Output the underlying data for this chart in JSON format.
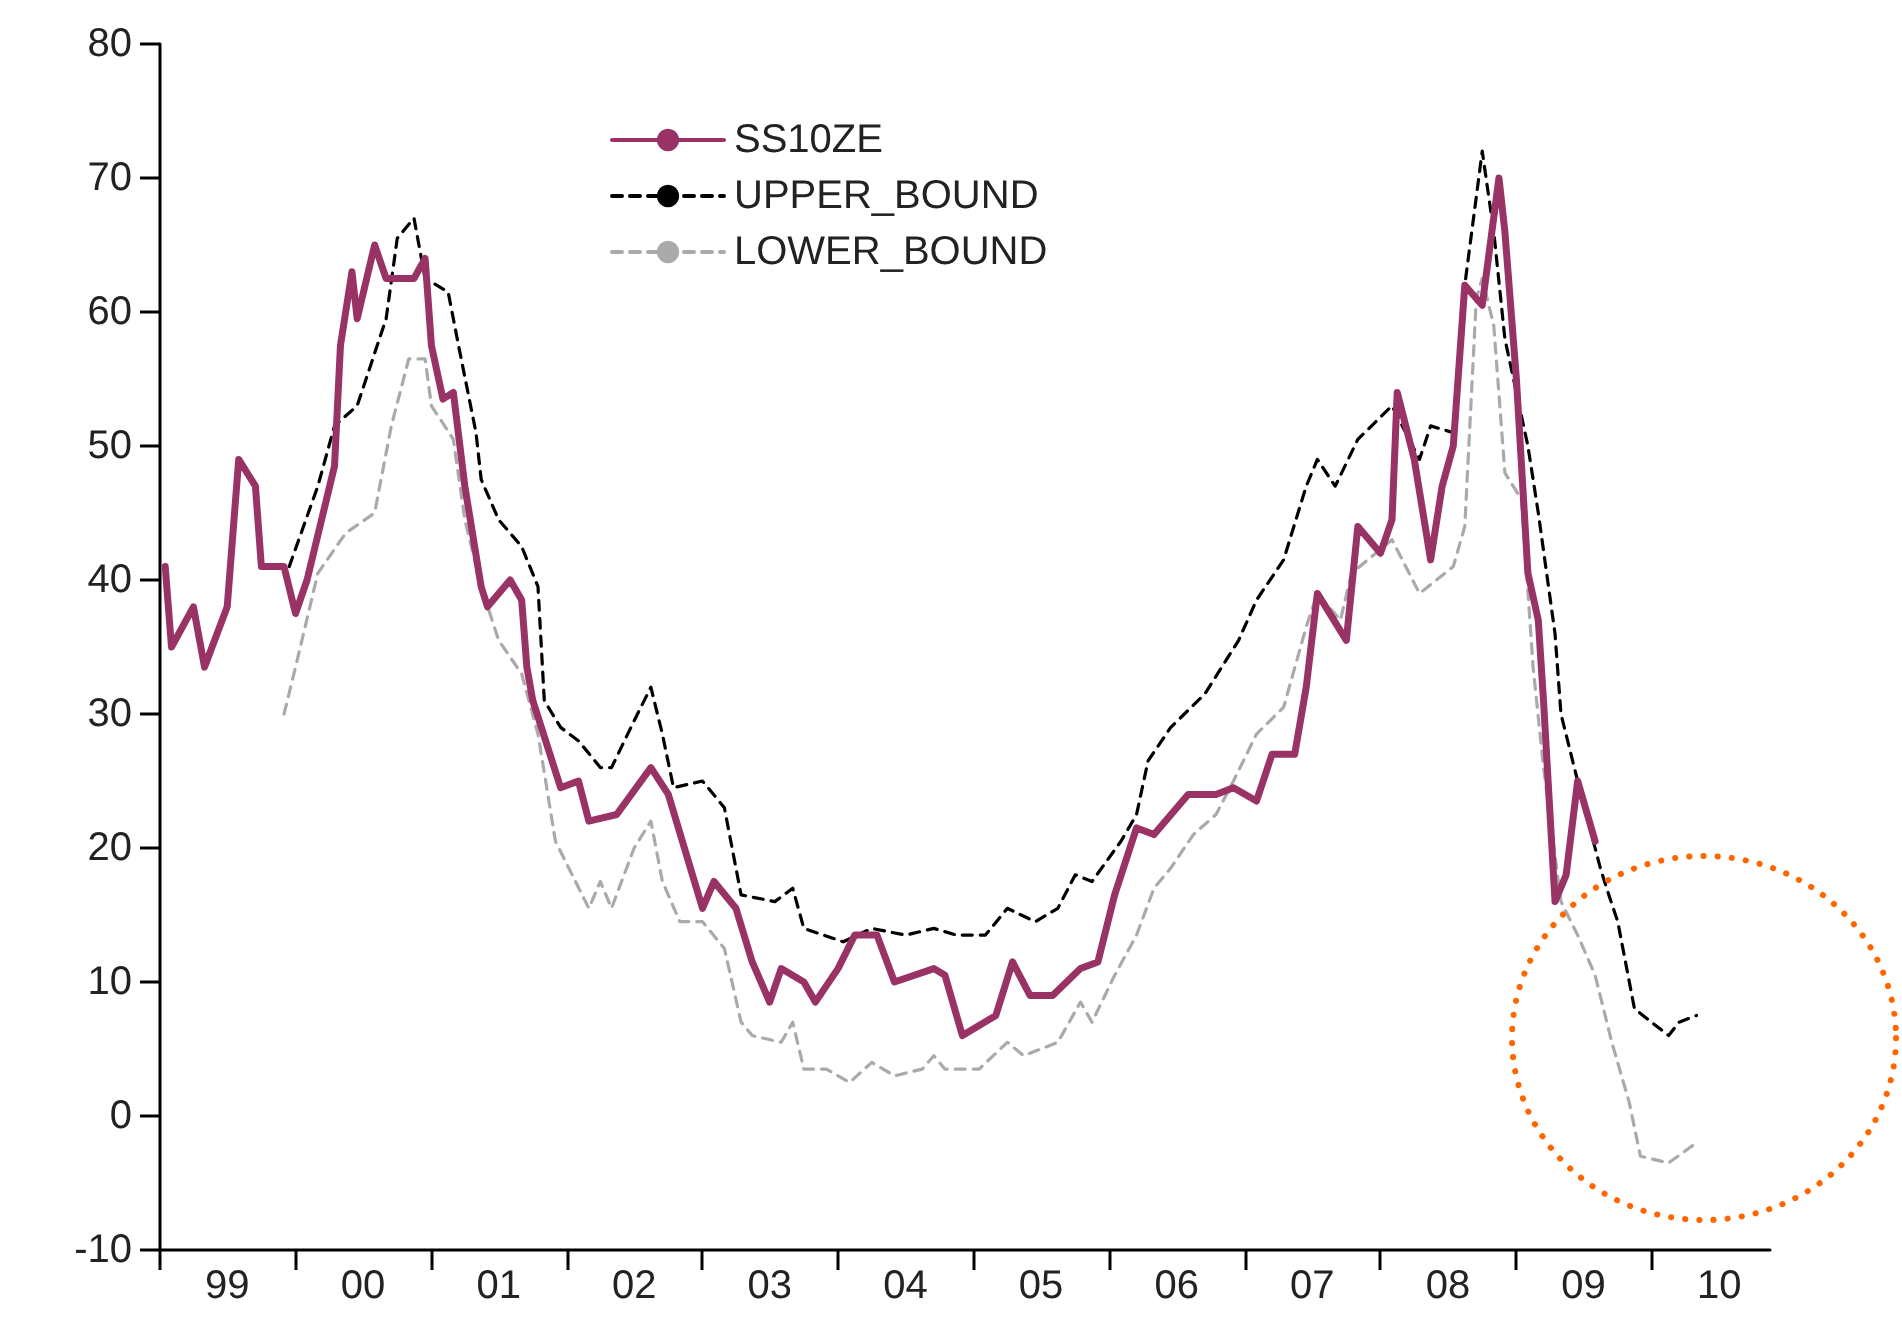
{
  "chart_data": {
    "type": "line",
    "xlim": [
      "1999-01-01",
      "2010-11-15"
    ],
    "xticks": [
      {
        "value": "1999-01-01",
        "label": null
      },
      {
        "value": "1999-07-01",
        "label": "99"
      },
      {
        "value": "2000-01-01",
        "label": null
      },
      {
        "value": "2000-07-01",
        "label": "00"
      },
      {
        "value": "2001-01-01",
        "label": null
      },
      {
        "value": "2001-07-01",
        "label": "01"
      },
      {
        "value": "2002-01-01",
        "label": null
      },
      {
        "value": "2002-07-01",
        "label": "02"
      },
      {
        "value": "2003-01-01",
        "label": null
      },
      {
        "value": "2003-07-01",
        "label": "03"
      },
      {
        "value": "2004-01-01",
        "label": null
      },
      {
        "value": "2004-07-01",
        "label": "04"
      },
      {
        "value": "2005-01-01",
        "label": null
      },
      {
        "value": "2005-07-01",
        "label": "05"
      },
      {
        "value": "2006-01-01",
        "label": null
      },
      {
        "value": "2006-07-01",
        "label": "06"
      },
      {
        "value": "2007-01-01",
        "label": null
      },
      {
        "value": "2007-07-01",
        "label": "07"
      },
      {
        "value": "2008-01-01",
        "label": null
      },
      {
        "value": "2008-07-01",
        "label": "08"
      },
      {
        "value": "2009-01-01",
        "label": null
      },
      {
        "value": "2009-07-01",
        "label": "09"
      },
      {
        "value": "2010-01-01",
        "label": null
      },
      {
        "value": "2010-07-01",
        "label": "10"
      }
    ],
    "ylim": [
      -10,
      80
    ],
    "yticks": [
      -10,
      0,
      10,
      20,
      30,
      40,
      50,
      60,
      70,
      80
    ],
    "grid": false,
    "legend": "top",
    "marker": "none",
    "series": [
      {
        "name": "SS10ZE",
        "color": "#993366",
        "line_style": "solid",
        "x": [
          "1999-01-15",
          "1999-02-01",
          "1999-04-01",
          "1999-05-01",
          "1999-07-01",
          "1999-08-01",
          "1999-09-15",
          "1999-10-01",
          "1999-12-01",
          "2000-01-01",
          "2000-02-01",
          "2000-04-15",
          "2000-05-01",
          "2000-06-01",
          "2000-06-15",
          "2000-08-01",
          "2000-09-01",
          "2000-11-15",
          "2000-12-15",
          "2001-01-01",
          "2001-02-01",
          "2001-03-01",
          "2001-04-01",
          "2001-05-15",
          "2001-06-01",
          "2001-08-01",
          "2001-09-01",
          "2001-09-15",
          "2001-10-01",
          "2001-12-15",
          "2002-02-01",
          "2002-03-01",
          "2002-05-15",
          "2002-08-15",
          "2002-10-01",
          "2003-01-01",
          "2003-02-01",
          "2003-04-01",
          "2003-05-15",
          "2003-07-01",
          "2003-08-01",
          "2003-10-01",
          "2003-11-01",
          "2004-01-01",
          "2004-02-15",
          "2004-04-15",
          "2004-06-01",
          "2004-09-15",
          "2004-10-15",
          "2004-12-01",
          "2005-03-01",
          "2005-04-15",
          "2005-06-01",
          "2005-08-01",
          "2005-10-15",
          "2005-12-01",
          "2006-01-15",
          "2006-03-15",
          "2006-05-01",
          "2006-08-01",
          "2006-10-15",
          "2006-12-01",
          "2007-02-01",
          "2007-03-15",
          "2007-05-15",
          "2007-06-15",
          "2007-07-15",
          "2007-10-01",
          "2007-11-01",
          "2008-01-01",
          "2008-02-01",
          "2008-02-15",
          "2008-04-01",
          "2008-05-15",
          "2008-06-15",
          "2008-07-15",
          "2008-08-15",
          "2008-10-01",
          "2008-11-15",
          "2008-12-01",
          "2009-01-01",
          "2009-02-01",
          "2009-03-01",
          "2009-03-15",
          "2009-04-15",
          "2009-05-15",
          "2009-06-15",
          "2009-08-01"
        ],
        "values": [
          41,
          35,
          38,
          33.5,
          38,
          49,
          47,
          41,
          41,
          37.5,
          40,
          48.5,
          57.5,
          63,
          59.5,
          65,
          62.5,
          62.5,
          64,
          57.5,
          53.5,
          54,
          47,
          39.5,
          38,
          40,
          38.5,
          33.5,
          31,
          24.5,
          25,
          22,
          22.5,
          26,
          24,
          15.5,
          17.5,
          15.5,
          11.5,
          8.5,
          11,
          10,
          8.5,
          11,
          13.5,
          13.5,
          10,
          11,
          10.5,
          6,
          7.5,
          11.5,
          9,
          9,
          11,
          11.5,
          16.5,
          21.5,
          21,
          24,
          24,
          24.5,
          23.5,
          27,
          27,
          32,
          39,
          35.5,
          44,
          42,
          44.5,
          54,
          49,
          41.5,
          47,
          50,
          62,
          60.5,
          70,
          66,
          55,
          40.5,
          37,
          31,
          16,
          18,
          25,
          20.5
        ]
      },
      {
        "name": "UPPER_BOUND",
        "color": "#000000",
        "line_style": "dashed",
        "x": [
          "1999-12-15",
          "2000-03-01",
          "2000-04-15",
          "2000-06-15",
          "2000-09-01",
          "2000-10-01",
          "2000-11-15",
          "2000-12-15",
          "2001-02-15",
          "2001-03-15",
          "2001-05-01",
          "2001-05-15",
          "2001-07-01",
          "2001-09-01",
          "2001-10-15",
          "2001-11-01",
          "2001-12-15",
          "2002-02-01",
          "2002-04-01",
          "2002-05-01",
          "2002-07-01",
          "2002-08-15",
          "2002-09-15",
          "2002-10-15",
          "2003-01-01",
          "2003-03-01",
          "2003-04-15",
          "2003-07-15",
          "2003-09-01",
          "2003-10-01",
          "2004-01-15",
          "2004-04-01",
          "2004-07-01",
          "2004-09-15",
          "2004-11-15",
          "2005-02-01",
          "2005-04-01",
          "2005-06-15",
          "2005-08-15",
          "2005-10-01",
          "2005-11-15",
          "2006-02-01",
          "2006-03-15",
          "2006-04-15",
          "2006-06-15",
          "2006-09-15",
          "2006-12-15",
          "2007-02-01",
          "2007-04-15",
          "2007-06-15",
          "2007-07-15",
          "2007-09-01",
          "2007-11-01",
          "2008-02-01",
          "2008-04-15",
          "2008-05-15",
          "2008-07-15",
          "2008-08-15",
          "2008-10-01",
          "2008-11-01",
          "2008-12-01",
          "2009-02-01",
          "2009-03-01",
          "2009-04-15",
          "2009-05-01",
          "2009-06-15",
          "2009-08-15",
          "2009-09-01",
          "2009-10-01",
          "2009-11-15",
          "2010-02-15",
          "2010-03-15",
          "2010-05-01"
        ],
        "values": [
          41,
          47,
          51.5,
          53,
          59.5,
          65.5,
          67,
          62.5,
          61.5,
          57.5,
          51,
          47.5,
          44.5,
          42.5,
          39.5,
          31,
          29,
          28,
          26,
          26,
          29.5,
          32,
          28.5,
          24.5,
          25,
          23,
          16.5,
          16,
          17,
          14,
          13,
          14,
          13.5,
          14,
          13.5,
          13.5,
          15.5,
          14.5,
          15.5,
          18,
          17.5,
          20.5,
          22.5,
          26.5,
          29,
          31.5,
          35.5,
          38.5,
          41.5,
          47,
          49,
          47,
          50.5,
          53,
          49,
          51.5,
          51,
          62,
          72,
          66,
          58,
          50,
          45,
          36,
          30,
          25,
          18.5,
          17,
          14.5,
          8,
          6,
          7,
          7.5
        ]
      },
      {
        "name": "LOWER_BOUND",
        "color": "#aaaaaa",
        "line_style": "dashed",
        "x": [
          "1999-12-01",
          "2000-01-01",
          "2000-03-01",
          "2000-05-15",
          "2000-08-01",
          "2000-09-15",
          "2000-11-01",
          "2000-12-15",
          "2001-01-01",
          "2001-03-01",
          "2001-04-01",
          "2001-05-15",
          "2001-07-01",
          "2001-09-01",
          "2001-10-15",
          "2001-12-01",
          "2002-01-15",
          "2002-03-01",
          "2002-04-01",
          "2002-05-01",
          "2002-07-01",
          "2002-08-15",
          "2002-09-15",
          "2002-11-01",
          "2003-01-01",
          "2003-03-01",
          "2003-04-15",
          "2003-05-15",
          "2003-08-01",
          "2003-09-01",
          "2003-10-01",
          "2003-12-01",
          "2004-02-01",
          "2004-04-01",
          "2004-06-01",
          "2004-08-15",
          "2004-09-15",
          "2004-10-15",
          "2005-01-15",
          "2005-04-01",
          "2005-05-15",
          "2005-08-15",
          "2005-10-15",
          "2005-11-15",
          "2006-01-15",
          "2006-03-15",
          "2006-05-01",
          "2006-06-15",
          "2006-08-15",
          "2006-10-15",
          "2006-12-01",
          "2007-02-01",
          "2007-04-15",
          "2007-06-15",
          "2007-07-15",
          "2007-09-15",
          "2007-10-15",
          "2008-02-01",
          "2008-04-15",
          "2008-07-15",
          "2008-08-15",
          "2008-09-15",
          "2008-10-01",
          "2008-11-01",
          "2008-12-01",
          "2009-01-15",
          "2009-02-15",
          "2009-03-15",
          "2009-05-01",
          "2009-06-15",
          "2009-08-01",
          "2009-09-15",
          "2009-11-01",
          "2009-12-01",
          "2010-02-15",
          "2010-05-01"
        ],
        "values": [
          30,
          33.5,
          40.5,
          43.5,
          45,
          51.5,
          56.5,
          56.5,
          53,
          50.5,
          44.5,
          39.5,
          35.5,
          33,
          28.5,
          20.5,
          18,
          15.5,
          17.5,
          15.5,
          20,
          22,
          17.5,
          14.5,
          14.5,
          12.5,
          7,
          6,
          5.5,
          7,
          3.5,
          3.5,
          2.5,
          4,
          3,
          3.5,
          4.5,
          3.5,
          3.5,
          5.5,
          4.5,
          5.5,
          8.5,
          7,
          10.5,
          13.5,
          17,
          18.5,
          21,
          22.5,
          25,
          28.5,
          30.5,
          36.5,
          39,
          37,
          40.5,
          43,
          39,
          41,
          44,
          61,
          62.5,
          59,
          48,
          46,
          33.5,
          26,
          16,
          13.5,
          10.5,
          5.5,
          1,
          -3,
          -3.5,
          -2
        ]
      }
    ]
  }
}
